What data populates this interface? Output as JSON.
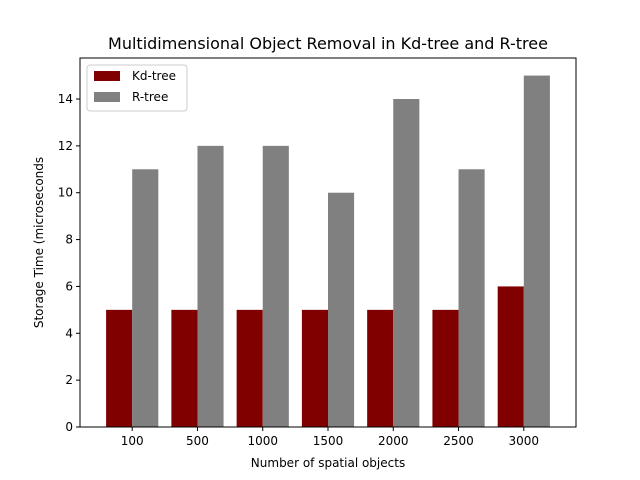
{
  "chart_data": {
    "type": "bar",
    "title": "Multidimensional Object Removal in Kd-tree and R-tree",
    "xlabel": "Number of spatial objects",
    "ylabel": "Storage Time (microseconds",
    "categories": [
      "100",
      "500",
      "1000",
      "1500",
      "2000",
      "2500",
      "3000"
    ],
    "series": [
      {
        "name": "Kd-tree",
        "color": "#800000",
        "values": [
          5,
          5,
          5,
          5,
          5,
          5,
          6
        ]
      },
      {
        "name": "R-tree",
        "color": "#808080",
        "values": [
          11,
          12,
          12,
          10,
          14,
          11,
          15
        ]
      }
    ],
    "ylim": [
      0,
      15.75
    ],
    "yticks": [
      0,
      2,
      4,
      6,
      8,
      10,
      12,
      14
    ],
    "grid": false,
    "legend": "top-left"
  }
}
